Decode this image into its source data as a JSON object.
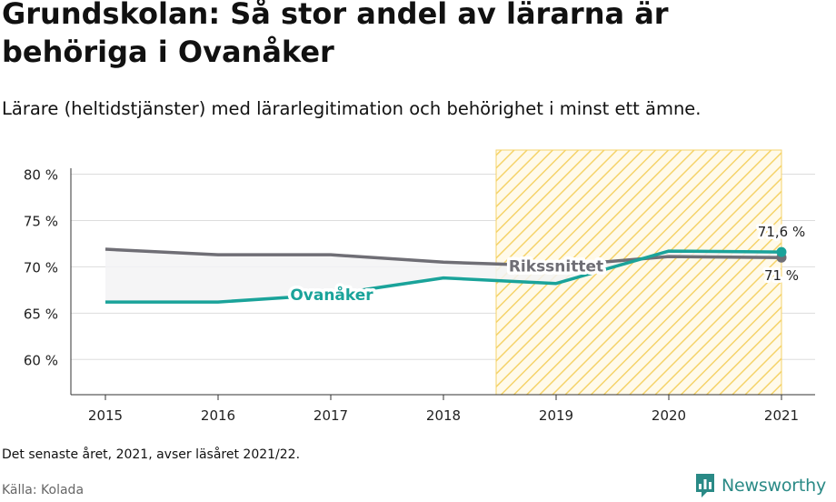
{
  "title": "Grundskolan: Så stor andel av lärarna är behöriga i Ovanåker",
  "subtitle": "Lärare (heltidstjänster) med lärarlegitimation och behörighet i minst ett ämne.",
  "footnote": "Det senaste året, 2021, avser läsåret 2021/22.",
  "source": "Källa: Kolada",
  "logo": {
    "text": "Newsworthy",
    "icon": "newsworthy-logo-icon"
  },
  "colors": {
    "ovanaker": "#1aa39a",
    "riksnittet": "#6f6e75",
    "highlight": "#f5d36a"
  },
  "chart_data": {
    "type": "line",
    "x": [
      "2015",
      "2016",
      "2017",
      "2018",
      "2019",
      "2020",
      "2021"
    ],
    "series": [
      {
        "name": "Ovanåker",
        "values": [
          66.2,
          66.2,
          67.0,
          68.8,
          68.2,
          71.7,
          71.6
        ]
      },
      {
        "name": "Rikssnittet",
        "values": [
          71.9,
          71.3,
          71.3,
          70.5,
          70.1,
          71.1,
          71.0
        ]
      }
    ],
    "yticks": [
      60,
      65,
      70,
      75,
      80
    ],
    "ytick_labels": [
      "60 %",
      "65 %",
      "70 %",
      "75 %",
      "80 %"
    ],
    "ylim": [
      56.2,
      82.6
    ],
    "highlight_range": [
      "2018.5",
      "2021"
    ],
    "end_labels": {
      "Ovanåker": "71,6 %",
      "Rikssnittet": "71 %"
    },
    "grid": true,
    "legend": "inline"
  }
}
